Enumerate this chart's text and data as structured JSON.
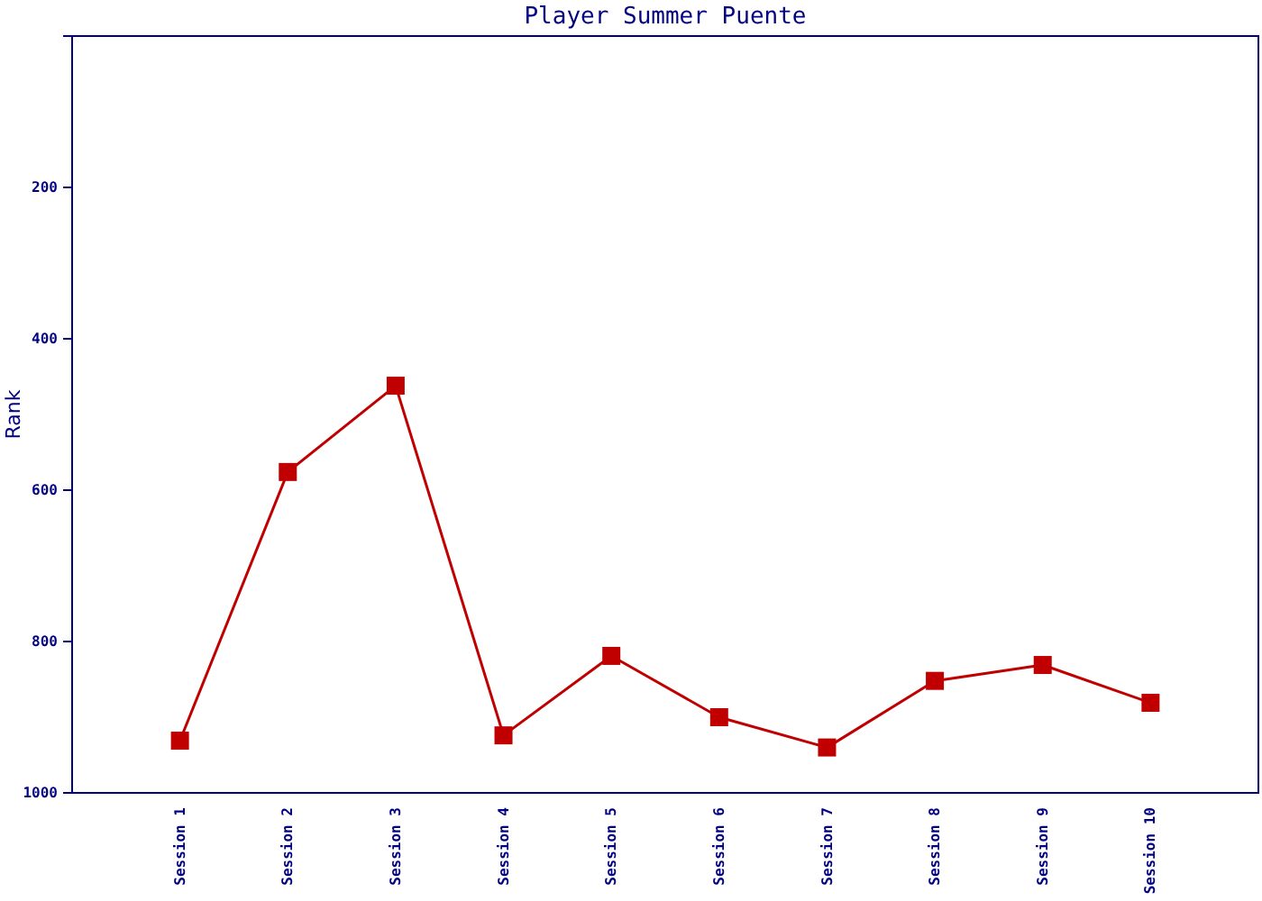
{
  "chart_data": {
    "type": "line",
    "title": "Player Summer Puente",
    "ylabel": "Rank",
    "categories": [
      "Session 1",
      "Session 2",
      "Session 3",
      "Session 4",
      "Session 5",
      "Session 6",
      "Session 7",
      "Session 8",
      "Session 9",
      "Session 10"
    ],
    "series": [
      {
        "color": "#c00000",
        "values": [
          931,
          576,
          462,
          924,
          819,
          900,
          940,
          852,
          831,
          881
        ]
      }
    ],
    "ylim": [
      1000,
      0
    ],
    "yticks": [
      200,
      400,
      600,
      800,
      1000
    ],
    "grid": false,
    "marker": "square",
    "line_style": "solid"
  }
}
